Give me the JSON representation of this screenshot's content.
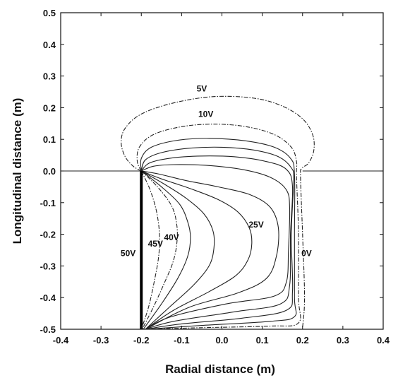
{
  "chart_data": {
    "type": "contour",
    "xlabel": "Radial distance (m)",
    "ylabel": "Longitudinal distance (m)",
    "xlim": [
      -0.4,
      0.4
    ],
    "ylim": [
      -0.5,
      0.5
    ],
    "xticks": [
      "-0.4",
      "-0.3",
      "-0.2",
      "-0.1",
      "0.0",
      "0.1",
      "0.2",
      "0.3",
      "0.4"
    ],
    "yticks": [
      "0.5",
      "0.4",
      "0.3",
      "0.2",
      "0.1",
      "0.0",
      "-0.1",
      "-0.2",
      "-0.3",
      "-0.4",
      "-0.5"
    ],
    "electrode": {
      "label": "50V",
      "x": -0.2,
      "y_from": -0.5,
      "y_to": 0.0
    },
    "ground_line_y": 0.0,
    "labels": [
      {
        "text": "5V",
        "x": -0.05,
        "y": 0.26
      },
      {
        "text": "10V",
        "x": -0.04,
        "y": 0.18
      },
      {
        "text": "45V",
        "x": -0.165,
        "y": -0.23
      },
      {
        "text": "40V",
        "x": -0.125,
        "y": -0.21
      },
      {
        "text": "25V",
        "x": 0.085,
        "y": -0.17
      },
      {
        "text": "0V",
        "x": 0.21,
        "y": -0.26
      }
    ],
    "contours": [
      {
        "level": "5V",
        "dashed": true,
        "points": [
          [
            -0.2,
            0
          ],
          [
            -0.22,
            0.015
          ],
          [
            -0.24,
            0.045
          ],
          [
            -0.25,
            0.09
          ],
          [
            -0.24,
            0.135
          ],
          [
            -0.2,
            0.18
          ],
          [
            -0.12,
            0.215
          ],
          [
            -0.02,
            0.235
          ],
          [
            0.08,
            0.23
          ],
          [
            0.15,
            0.205
          ],
          [
            0.2,
            0.165
          ],
          [
            0.225,
            0.115
          ],
          [
            0.228,
            0.065
          ],
          [
            0.215,
            0.025
          ],
          [
            0.198,
            0.008
          ],
          [
            0.195,
            -0.02
          ],
          [
            0.2,
            -0.2
          ],
          [
            0.205,
            -0.4
          ],
          [
            0.2,
            -0.495
          ]
        ]
      },
      {
        "level": "10V",
        "dashed": true,
        "points": [
          [
            -0.2,
            0
          ],
          [
            -0.21,
            0.03
          ],
          [
            -0.205,
            0.075
          ],
          [
            -0.17,
            0.115
          ],
          [
            -0.1,
            0.14
          ],
          [
            -0.02,
            0.148
          ],
          [
            0.06,
            0.14
          ],
          [
            0.13,
            0.115
          ],
          [
            0.172,
            0.075
          ],
          [
            0.185,
            0.03
          ],
          [
            0.185,
            -0.02
          ],
          [
            0.19,
            -0.2
          ],
          [
            0.19,
            -0.4
          ],
          [
            0.19,
            -0.48
          ],
          [
            0.12,
            -0.49
          ],
          [
            -0.05,
            -0.495
          ],
          [
            -0.19,
            -0.5
          ]
        ]
      },
      {
        "level": "",
        "dashed": false,
        "points": [
          [
            -0.2,
            0
          ],
          [
            -0.2,
            0.04
          ],
          [
            -0.175,
            0.075
          ],
          [
            -0.11,
            0.097
          ],
          [
            -0.03,
            0.103
          ],
          [
            0.06,
            0.095
          ],
          [
            0.13,
            0.075
          ],
          [
            0.17,
            0.04
          ],
          [
            0.18,
            -0.01
          ],
          [
            0.18,
            -0.2
          ],
          [
            0.18,
            -0.4
          ],
          [
            0.18,
            -0.46
          ],
          [
            0.12,
            -0.475
          ],
          [
            -0.05,
            -0.488
          ],
          [
            -0.19,
            -0.5
          ]
        ]
      },
      {
        "level": "",
        "dashed": false,
        "points": [
          [
            -0.2,
            0
          ],
          [
            -0.19,
            0.035
          ],
          [
            -0.15,
            0.058
          ],
          [
            -0.08,
            0.072
          ],
          [
            0.0,
            0.075
          ],
          [
            0.08,
            0.066
          ],
          [
            0.14,
            0.045
          ],
          [
            0.172,
            0.01
          ],
          [
            0.178,
            -0.03
          ],
          [
            0.172,
            -0.2
          ],
          [
            0.175,
            -0.38
          ],
          [
            0.16,
            -0.44
          ],
          [
            0.05,
            -0.465
          ],
          [
            -0.1,
            -0.483
          ],
          [
            -0.19,
            -0.5
          ]
        ]
      },
      {
        "level": "",
        "dashed": false,
        "points": [
          [
            -0.2,
            0
          ],
          [
            -0.18,
            0.025
          ],
          [
            -0.13,
            0.04
          ],
          [
            -0.06,
            0.047
          ],
          [
            0.03,
            0.045
          ],
          [
            0.11,
            0.03
          ],
          [
            0.16,
            0.005
          ],
          [
            0.175,
            -0.05
          ],
          [
            0.17,
            -0.2
          ],
          [
            0.168,
            -0.36
          ],
          [
            0.145,
            -0.42
          ],
          [
            0.03,
            -0.445
          ],
          [
            -0.12,
            -0.475
          ],
          [
            -0.19,
            -0.5
          ]
        ]
      },
      {
        "level": "",
        "dashed": false,
        "points": [
          [
            -0.2,
            0
          ],
          [
            -0.17,
            0.015
          ],
          [
            -0.12,
            0.02
          ],
          [
            -0.04,
            0.018
          ],
          [
            0.05,
            0.005
          ],
          [
            0.12,
            -0.02
          ],
          [
            0.16,
            -0.06
          ],
          [
            0.168,
            -0.12
          ],
          [
            0.165,
            -0.25
          ],
          [
            0.16,
            -0.35
          ],
          [
            0.13,
            -0.395
          ],
          [
            0.01,
            -0.42
          ],
          [
            -0.13,
            -0.462
          ],
          [
            -0.19,
            -0.5
          ]
        ]
      },
      {
        "level": "",
        "dashed": false,
        "points": [
          [
            -0.2,
            0
          ],
          [
            -0.155,
            -0.01
          ],
          [
            -0.09,
            -0.03
          ],
          [
            -0.01,
            -0.05
          ],
          [
            0.07,
            -0.075
          ],
          [
            0.12,
            -0.115
          ],
          [
            0.14,
            -0.18
          ],
          [
            0.135,
            -0.27
          ],
          [
            0.11,
            -0.34
          ],
          [
            0.04,
            -0.385
          ],
          [
            -0.08,
            -0.43
          ],
          [
            -0.19,
            -0.5
          ]
        ]
      },
      {
        "level": "25V",
        "dashed": false,
        "points": [
          [
            -0.2,
            0
          ],
          [
            -0.15,
            -0.025
          ],
          [
            -0.08,
            -0.055
          ],
          [
            -0.01,
            -0.09
          ],
          [
            0.04,
            -0.13
          ],
          [
            0.068,
            -0.18
          ],
          [
            0.074,
            -0.23
          ],
          [
            0.065,
            -0.28
          ],
          [
            0.035,
            -0.33
          ],
          [
            -0.03,
            -0.38
          ],
          [
            -0.12,
            -0.44
          ],
          [
            -0.19,
            -0.5
          ]
        ]
      },
      {
        "level": "",
        "dashed": false,
        "points": [
          [
            -0.2,
            0
          ],
          [
            -0.145,
            -0.04
          ],
          [
            -0.09,
            -0.085
          ],
          [
            -0.045,
            -0.135
          ],
          [
            -0.022,
            -0.19
          ],
          [
            -0.02,
            -0.245
          ],
          [
            -0.032,
            -0.3
          ],
          [
            -0.07,
            -0.36
          ],
          [
            -0.13,
            -0.43
          ],
          [
            -0.19,
            -0.5
          ]
        ]
      },
      {
        "level": "",
        "dashed": false,
        "points": [
          [
            -0.2,
            0
          ],
          [
            -0.15,
            -0.05
          ],
          [
            -0.105,
            -0.105
          ],
          [
            -0.085,
            -0.16
          ],
          [
            -0.078,
            -0.21
          ],
          [
            -0.085,
            -0.27
          ],
          [
            -0.11,
            -0.34
          ],
          [
            -0.15,
            -0.42
          ],
          [
            -0.195,
            -0.5
          ]
        ]
      },
      {
        "level": "40V",
        "dashed": true,
        "points": [
          [
            -0.2,
            0
          ],
          [
            -0.16,
            -0.05
          ],
          [
            -0.125,
            -0.11
          ],
          [
            -0.112,
            -0.17
          ],
          [
            -0.112,
            -0.23
          ],
          [
            -0.122,
            -0.29
          ],
          [
            -0.145,
            -0.36
          ],
          [
            -0.17,
            -0.43
          ],
          [
            -0.198,
            -0.5
          ]
        ]
      },
      {
        "level": "45V",
        "dashed": true,
        "points": [
          [
            -0.2,
            0
          ],
          [
            -0.178,
            -0.06
          ],
          [
            -0.162,
            -0.13
          ],
          [
            -0.155,
            -0.2
          ],
          [
            -0.157,
            -0.27
          ],
          [
            -0.168,
            -0.35
          ],
          [
            -0.182,
            -0.43
          ],
          [
            -0.2,
            -0.5
          ]
        ]
      }
    ]
  }
}
